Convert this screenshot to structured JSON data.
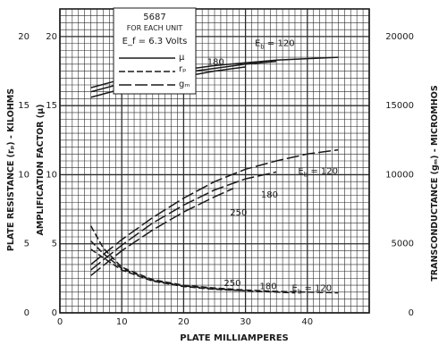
{
  "chart_data": {
    "type": "line",
    "xlabel": "PLATE MILLIAMPERES",
    "ylabel_left_outer": "PLATE RESISTANCE (rₚ) - KILOHMS",
    "ylabel_left_inner": "AMPLIFICATION FACTOR (μ)",
    "ylabel_right": "TRANSCONDUCTANCE (gₘ) - MICROMHOS",
    "xlim": [
      0,
      50
    ],
    "ylim": [
      0,
      22
    ],
    "y2lim": [
      0,
      22000
    ],
    "grid": true,
    "x_ticks": [
      "0",
      "10",
      "20",
      "30",
      "40"
    ],
    "y_ticks_outer": [
      "0",
      "5",
      "10",
      "15",
      "20"
    ],
    "y_ticks_inner": [
      "0",
      "5",
      "10",
      "15",
      "20"
    ],
    "y2_ticks": [
      "0",
      "5000",
      "10000",
      "15000",
      "20000"
    ],
    "legend": {
      "title": "5687",
      "subtitle": "FOR EACH UNIT",
      "condition": "E_f = 6.3 Volts",
      "entries": [
        {
          "label": "μ",
          "style": "solid"
        },
        {
          "label": "rₚ",
          "style": "dashed"
        },
        {
          "label": "gₘ",
          "style": "longdash"
        }
      ],
      "placement": "top-left"
    },
    "annotations": [
      {
        "text": "E_b = 120",
        "group": "mu"
      },
      {
        "text": "180",
        "group": "mu"
      },
      {
        "text": "250",
        "group": "mu"
      },
      {
        "text": "E_b = 120",
        "group": "gm"
      },
      {
        "text": "180",
        "group": "gm"
      },
      {
        "text": "250",
        "group": "gm"
      },
      {
        "text": "250",
        "group": "rp"
      },
      {
        "text": "180",
        "group": "rp"
      },
      {
        "text": "E_b = 120",
        "group": "rp"
      }
    ],
    "series": [
      {
        "name": "μ",
        "Eb": 120,
        "style": "solid",
        "x": [
          5,
          10,
          15,
          20,
          25,
          30,
          35,
          40,
          45
        ],
        "y": [
          16.3,
          16.9,
          17.3,
          17.6,
          17.9,
          18.1,
          18.3,
          18.4,
          18.5
        ]
      },
      {
        "name": "μ",
        "Eb": 180,
        "style": "solid",
        "x": [
          5,
          10,
          15,
          20,
          25,
          30,
          35
        ],
        "y": [
          16.0,
          16.6,
          17.0,
          17.4,
          17.7,
          18.0,
          18.2
        ]
      },
      {
        "name": "μ",
        "Eb": 250,
        "style": "solid",
        "x": [
          5,
          10,
          15,
          20,
          25,
          30
        ],
        "y": [
          15.6,
          16.2,
          16.7,
          17.1,
          17.5,
          17.8
        ]
      },
      {
        "name": "gₘ",
        "Eb": 120,
        "style": "longdash",
        "axis": "right",
        "x": [
          5,
          10,
          15,
          20,
          25,
          30,
          35,
          40,
          45
        ],
        "y": [
          3500,
          5300,
          6900,
          8300,
          9500,
          10400,
          11000,
          11500,
          11800
        ]
      },
      {
        "name": "gₘ",
        "Eb": 180,
        "style": "longdash",
        "axis": "right",
        "x": [
          5,
          10,
          15,
          20,
          25,
          30,
          35
        ],
        "y": [
          3100,
          4900,
          6500,
          7800,
          8900,
          9700,
          10200
        ]
      },
      {
        "name": "gₘ",
        "Eb": 250,
        "style": "longdash",
        "axis": "right",
        "x": [
          5,
          10,
          15,
          20,
          25,
          28
        ],
        "y": [
          2700,
          4500,
          6000,
          7300,
          8400,
          9000
        ]
      },
      {
        "name": "rₚ",
        "Eb": 120,
        "style": "dashed",
        "x": [
          5,
          7,
          10,
          15,
          20,
          25,
          30,
          35,
          40,
          45
        ],
        "y": [
          6.3,
          4.7,
          3.3,
          2.4,
          2.0,
          1.8,
          1.65,
          1.55,
          1.5,
          1.45
        ]
      },
      {
        "name": "rₚ",
        "Eb": 180,
        "style": "dashed",
        "x": [
          5,
          7,
          10,
          15,
          20,
          25,
          30,
          35,
          38
        ],
        "y": [
          5.2,
          4.3,
          3.2,
          2.35,
          1.95,
          1.75,
          1.6,
          1.5,
          1.45
        ]
      },
      {
        "name": "rₚ",
        "Eb": 250,
        "style": "dashed",
        "x": [
          5,
          7,
          10,
          15,
          20,
          25,
          30
        ],
        "y": [
          4.6,
          4.0,
          3.1,
          2.3,
          1.9,
          1.7,
          1.6
        ]
      }
    ]
  }
}
